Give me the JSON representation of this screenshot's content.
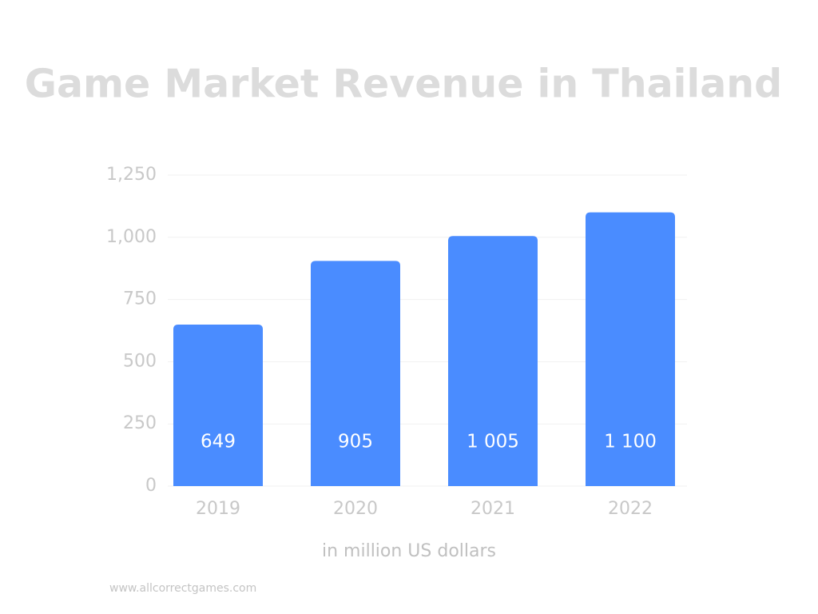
{
  "chart_data": {
    "type": "bar",
    "title": "Game Market Revenue in Thailand",
    "categories": [
      "2019",
      "2020",
      "2021",
      "2022"
    ],
    "values": [
      649,
      905,
      1005,
      1100
    ],
    "value_labels": [
      "649",
      "905",
      "1 005",
      "1 100"
    ],
    "color": "#4a8cff",
    "ylim": [
      0,
      1250
    ],
    "yticks": [
      0,
      250,
      500,
      750,
      {
        "value": 1000,
        "label": "1,000"
      },
      {
        "value": 1250,
        "label": "1,250"
      }
    ],
    "grid": true,
    "xlabel": "in million US dollars",
    "source": "www.allcorrectgames.com"
  }
}
